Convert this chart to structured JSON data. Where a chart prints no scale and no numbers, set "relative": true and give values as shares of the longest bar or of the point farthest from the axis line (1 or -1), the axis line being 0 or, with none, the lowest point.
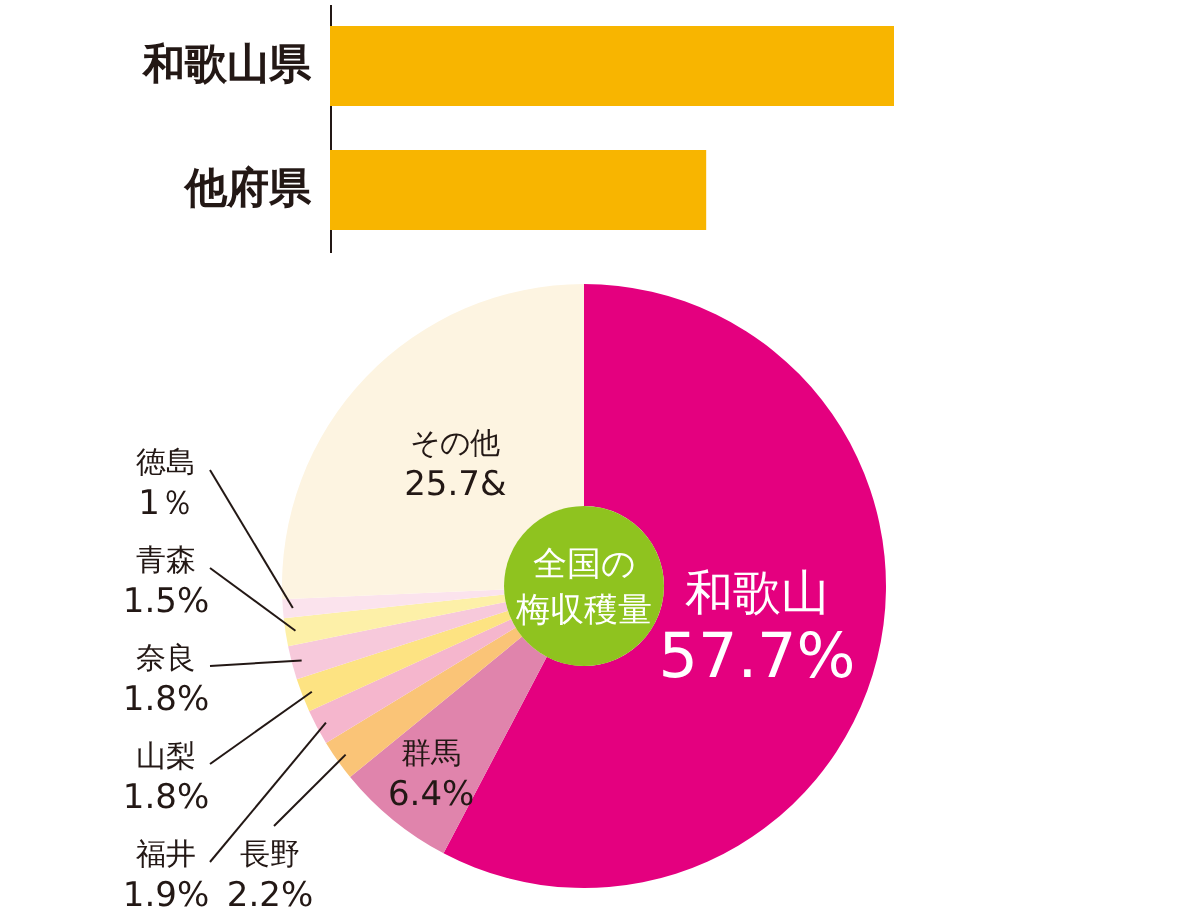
{
  "chart_data": [
    {
      "type": "bar",
      "orientation": "horizontal",
      "relative": true,
      "categories": [
        "和歌山県",
        "他府県"
      ],
      "values": [
        1,
        0.667
      ],
      "color": "#f8b500"
    },
    {
      "type": "donut",
      "categories": [
        "和歌山",
        "群馬",
        "長野",
        "福井",
        "山梨",
        "奈良",
        "青森",
        "徳島",
        "その他"
      ],
      "values": [
        57.7,
        6.4,
        2.2,
        1.9,
        1.8,
        1.8,
        1.5,
        1,
        25.7
      ],
      "colors": [
        "#e4007f",
        "#e084ac",
        "#fac477",
        "#f5b6cd",
        "#fde382",
        "#f7c9db",
        "#fdf0a8",
        "#fbe3ed",
        "#fdf4e1"
      ],
      "value_labels": [
        "57.7%",
        "6.4%",
        "2.2%",
        "1.9%",
        "1.8%",
        "1.8%",
        "1.5%",
        "1％",
        "25.7&"
      ],
      "annotations": [
        "全国の",
        "梅収穫量"
      ]
    }
  ]
}
